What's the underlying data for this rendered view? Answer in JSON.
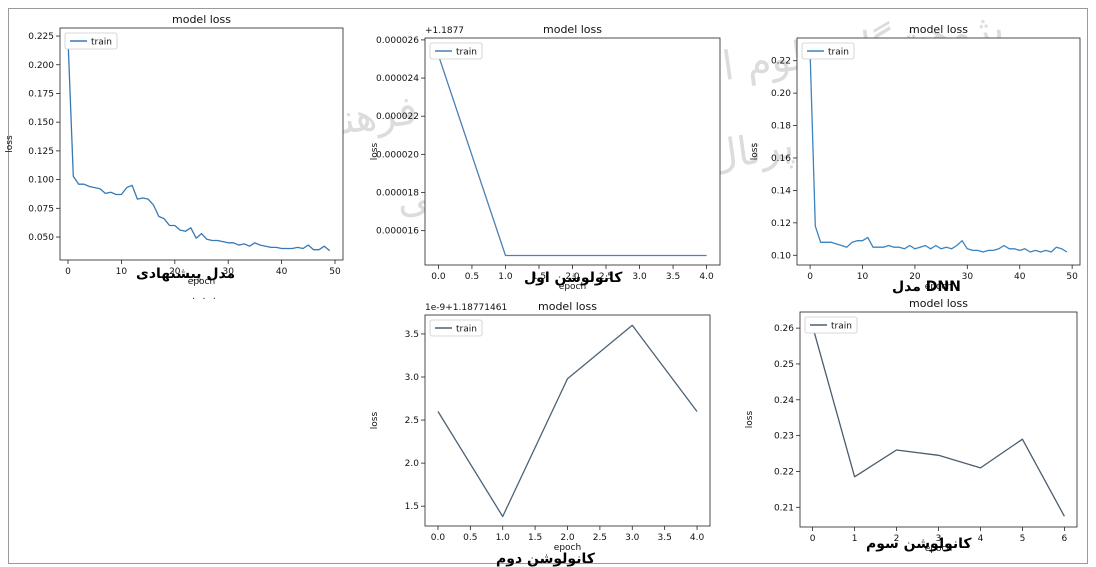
{
  "watermark": {
    "line1": "پژوهشگاه علوم انسانی و مطالعات فرهنگی",
    "line2": "پرتال جامع علوم انسانی"
  },
  "captions": {
    "c1": "مدل پیشنهادی",
    "c2": "کانولوشن اول",
    "c3": "مدل DNN",
    "c4": "کانولوشن دوم",
    "c5": "کانولوشن سوم",
    "dots": ". . ."
  },
  "colors": {
    "line_proposed": "#3878b5",
    "line_conv1": "#4a7fb8",
    "line_dnn": "#3a84c0",
    "line_conv2": "#4d6275",
    "line_conv3": "#4b5d70"
  },
  "chart_data": [
    {
      "type": "line",
      "title": "model loss",
      "xlabel": "epoch",
      "ylabel": "loss",
      "legend": "top-left",
      "offset_text": "",
      "xlim": [
        -1.5,
        51.5
      ],
      "ylim": [
        0.03,
        0.232
      ],
      "xticks": [
        0,
        10,
        20,
        30,
        40,
        50
      ],
      "xtick_labels": [
        "0",
        "10",
        "20",
        "30",
        "40",
        "50"
      ],
      "yticks": [
        0.05,
        0.075,
        0.1,
        0.125,
        0.15,
        0.175,
        0.2,
        0.225
      ],
      "ytick_labels": [
        "0.050",
        "0.075",
        "0.100",
        "0.125",
        "0.150",
        "0.175",
        "0.200",
        "0.225"
      ],
      "series": [
        {
          "name": "train",
          "x": [
            0,
            1,
            2,
            3,
            4,
            5,
            6,
            7,
            8,
            9,
            10,
            11,
            12,
            13,
            14,
            15,
            16,
            17,
            18,
            19,
            20,
            21,
            22,
            23,
            24,
            25,
            26,
            27,
            28,
            29,
            30,
            31,
            32,
            33,
            34,
            35,
            36,
            37,
            38,
            39,
            40,
            41,
            42,
            43,
            44,
            45,
            46,
            47,
            48,
            49
          ],
          "y": [
            0.222,
            0.103,
            0.096,
            0.096,
            0.094,
            0.093,
            0.092,
            0.088,
            0.089,
            0.087,
            0.087,
            0.093,
            0.095,
            0.083,
            0.084,
            0.083,
            0.078,
            0.068,
            0.066,
            0.06,
            0.06,
            0.056,
            0.055,
            0.058,
            0.049,
            0.053,
            0.048,
            0.047,
            0.047,
            0.046,
            0.045,
            0.045,
            0.043,
            0.044,
            0.042,
            0.045,
            0.043,
            0.042,
            0.041,
            0.041,
            0.04,
            0.04,
            0.04,
            0.041,
            0.04,
            0.043,
            0.039,
            0.039,
            0.042,
            0.038
          ]
        }
      ]
    },
    {
      "type": "line",
      "title": "model loss",
      "xlabel": "epoch",
      "ylabel": "loss",
      "legend": "top-left",
      "offset_text": "+1.1877",
      "xlim": [
        -0.2,
        4.2
      ],
      "ylim": [
        1.42e-05,
        2.61e-05
      ],
      "xticks": [
        0,
        0.5,
        1,
        1.5,
        2,
        2.5,
        3,
        3.5,
        4
      ],
      "xtick_labels": [
        "0.0",
        "0.5",
        "1.0",
        "1.5",
        "2.0",
        "2.5",
        "3.0",
        "3.5",
        "4.0"
      ],
      "yticks": [
        1.6e-05,
        1.8e-05,
        2e-05,
        2.2e-05,
        2.4e-05,
        2.6e-05
      ],
      "ytick_labels": [
        "0.000016",
        "0.000018",
        "0.000020",
        "0.000022",
        "0.000024",
        "0.000026"
      ],
      "series": [
        {
          "name": "train",
          "x": [
            0,
            1,
            2,
            3,
            4
          ],
          "y": [
            2.52e-05,
            1.47e-05,
            1.47e-05,
            1.47e-05,
            1.47e-05
          ]
        }
      ]
    },
    {
      "type": "line",
      "title": "model loss",
      "xlabel": "epoch",
      "ylabel": "loss",
      "legend": "top-left",
      "offset_text": "",
      "xlim": [
        -2.5,
        51.5
      ],
      "ylim": [
        0.094,
        0.234
      ],
      "xticks": [
        0,
        10,
        20,
        30,
        40,
        50
      ],
      "xtick_labels": [
        "0",
        "10",
        "20",
        "30",
        "40",
        "50"
      ],
      "yticks": [
        0.1,
        0.12,
        0.14,
        0.16,
        0.18,
        0.2,
        0.22
      ],
      "ytick_labels": [
        "0.10",
        "0.12",
        "0.14",
        "0.16",
        "0.18",
        "0.20",
        "0.22"
      ],
      "series": [
        {
          "name": "train",
          "x": [
            0,
            1,
            2,
            3,
            4,
            5,
            6,
            7,
            8,
            9,
            10,
            11,
            12,
            13,
            14,
            15,
            16,
            17,
            18,
            19,
            20,
            21,
            22,
            23,
            24,
            25,
            26,
            27,
            28,
            29,
            30,
            31,
            32,
            33,
            34,
            35,
            36,
            37,
            38,
            39,
            40,
            41,
            42,
            43,
            44,
            45,
            46,
            47,
            48,
            49
          ],
          "y": [
            0.225,
            0.118,
            0.108,
            0.108,
            0.108,
            0.107,
            0.106,
            0.105,
            0.108,
            0.109,
            0.109,
            0.111,
            0.105,
            0.105,
            0.105,
            0.106,
            0.105,
            0.105,
            0.104,
            0.106,
            0.104,
            0.105,
            0.106,
            0.104,
            0.106,
            0.104,
            0.105,
            0.104,
            0.106,
            0.109,
            0.104,
            0.103,
            0.103,
            0.102,
            0.103,
            0.103,
            0.104,
            0.106,
            0.104,
            0.104,
            0.103,
            0.104,
            0.102,
            0.103,
            0.102,
            0.103,
            0.102,
            0.105,
            0.104,
            0.102
          ]
        }
      ]
    },
    {
      "type": "line",
      "title": "model loss",
      "xlabel": "epoch",
      "ylabel": "loss",
      "legend": "top-left",
      "offset_text": "1e-9+1.18771461",
      "xlim": [
        -0.2,
        4.2
      ],
      "ylim": [
        1.27,
        3.72
      ],
      "xticks": [
        0,
        0.5,
        1,
        1.5,
        2,
        2.5,
        3,
        3.5,
        4
      ],
      "xtick_labels": [
        "0.0",
        "0.5",
        "1.0",
        "1.5",
        "2.0",
        "2.5",
        "3.0",
        "3.5",
        "4.0"
      ],
      "yticks": [
        1.5,
        2.0,
        2.5,
        3.0,
        3.5
      ],
      "ytick_labels": [
        "1.5",
        "2.0",
        "2.5",
        "3.0",
        "3.5"
      ],
      "series": [
        {
          "name": "train",
          "x": [
            0,
            1,
            2,
            3,
            4
          ],
          "y": [
            2.6,
            1.38,
            2.98,
            3.6,
            2.6
          ]
        }
      ]
    },
    {
      "type": "line",
      "title": "model loss",
      "xlabel": "epoch",
      "ylabel": "loss",
      "legend": "top-left",
      "offset_text": "",
      "xlim": [
        -0.3,
        6.3
      ],
      "ylim": [
        0.2045,
        0.2645
      ],
      "xticks": [
        0,
        1,
        2,
        3,
        4,
        5,
        6
      ],
      "xtick_labels": [
        "0",
        "1",
        "2",
        "3",
        "4",
        "5",
        "6"
      ],
      "yticks": [
        0.21,
        0.22,
        0.23,
        0.24,
        0.25,
        0.26
      ],
      "ytick_labels": [
        "0.21",
        "0.22",
        "0.23",
        "0.24",
        "0.25",
        "0.26"
      ],
      "series": [
        {
          "name": "train",
          "x": [
            0,
            1,
            2,
            3,
            4,
            5,
            6
          ],
          "y": [
            0.2605,
            0.2185,
            0.226,
            0.2245,
            0.221,
            0.229,
            0.2075
          ]
        }
      ]
    }
  ]
}
